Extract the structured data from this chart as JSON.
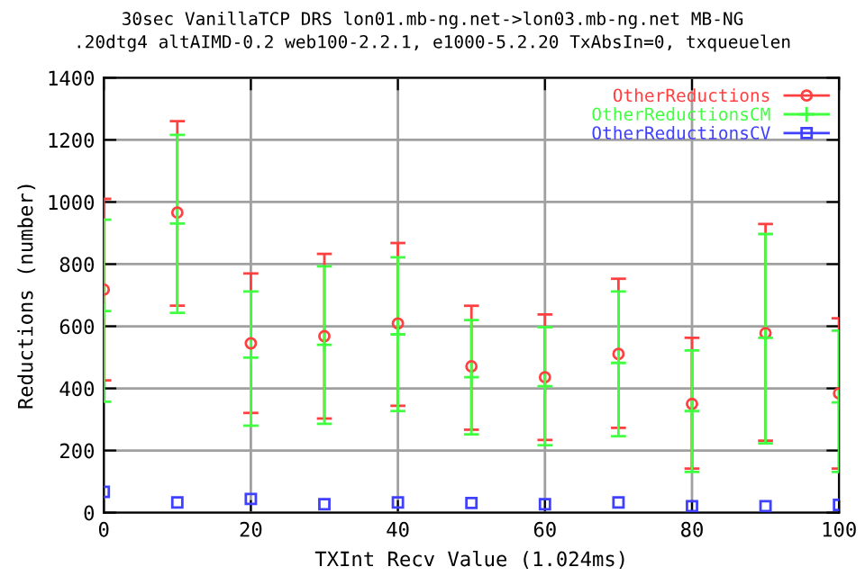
{
  "chart_data": {
    "type": "scatter",
    "title": "30sec VanillaTCP DRS lon01.mb-ng.net->lon03.mb-ng.net MB-NG",
    "subtitle": ".20dtg4 altAIMD-0.2 web100-2.2.1, e1000-5.2.20 TxAbsIn=0, txqueuelen",
    "xlabel": "TXInt Recv Value (1.024ms)",
    "ylabel": "Reductions (number)",
    "x": [
      0,
      10,
      20,
      30,
      40,
      50,
      60,
      70,
      80,
      90,
      100
    ],
    "series": [
      {
        "name": "OtherReductions",
        "color": "#ff4040",
        "marker": "circle",
        "values": [
          718,
          966,
          545,
          568,
          609,
          471,
          436,
          511,
          350,
          578,
          384
        ],
        "errors": [
          [
            426,
            1010
          ],
          [
            666,
            1260
          ],
          [
            321,
            770
          ],
          [
            303,
            833
          ],
          [
            344,
            868
          ],
          [
            267,
            666
          ],
          [
            234,
            638
          ],
          [
            273,
            753
          ],
          [
            142,
            563
          ],
          [
            232,
            929
          ],
          [
            142,
            626
          ]
        ]
      },
      {
        "name": "OtherReductionsCM",
        "color": "#40ff40",
        "marker": "cross",
        "values": [
          649,
          931,
          499,
          540,
          574,
          436,
          407,
          482,
          327,
          563,
          355
        ],
        "errors": [
          [
            357,
            943
          ],
          [
            643,
            1216
          ],
          [
            280,
            712
          ],
          [
            286,
            793
          ],
          [
            327,
            822
          ],
          [
            252,
            620
          ],
          [
            217,
            597
          ],
          [
            246,
            712
          ],
          [
            131,
            522
          ],
          [
            223,
            897
          ],
          [
            131,
            586
          ]
        ]
      },
      {
        "name": "OtherReductionsCV",
        "color": "#4040ff",
        "marker": "square",
        "values": [
          67,
          33,
          44,
          27,
          33,
          31,
          27,
          33,
          21,
          21,
          25
        ]
      }
    ],
    "xlim": [
      0,
      100
    ],
    "xticks": [
      0,
      20,
      40,
      60,
      80,
      100
    ],
    "ylim": [
      0,
      1400
    ],
    "yticks": [
      0,
      200,
      400,
      600,
      800,
      1000,
      1200,
      1400
    ],
    "grid": true,
    "legend": "top right"
  }
}
